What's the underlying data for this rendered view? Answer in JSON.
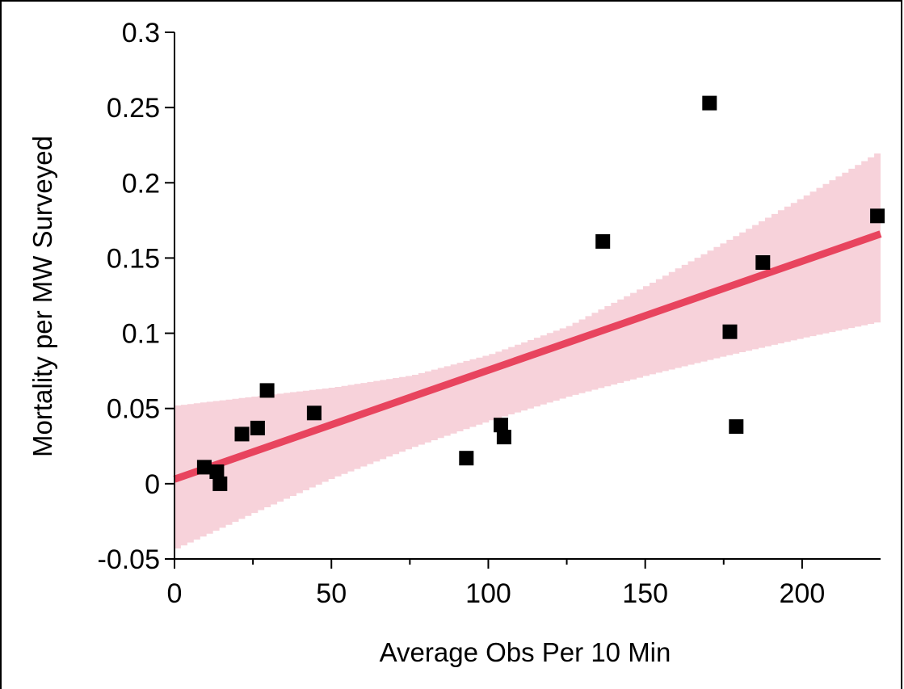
{
  "chart_data": {
    "type": "scatter",
    "title": "",
    "xlabel": "Average Obs Per 10 Min",
    "ylabel": "Mortality per MW Surveyed",
    "xlim": [
      0,
      225
    ],
    "ylim": [
      -0.05,
      0.3
    ],
    "x_ticks": [
      0,
      50,
      100,
      150,
      200
    ],
    "x_tick_labels": [
      "0",
      "50",
      "100",
      "150",
      "200"
    ],
    "x_minor_step": 25,
    "y_ticks": [
      -0.05,
      0,
      0.05,
      0.1,
      0.15,
      0.2,
      0.25,
      0.3
    ],
    "y_tick_labels": [
      "-0.05",
      "0",
      "0.05",
      "0.1",
      "0.15",
      "0.2",
      "0.25",
      "0.3"
    ],
    "grid": false,
    "legend": "none",
    "series": [
      {
        "points": [
          [
            9.5,
            0.011
          ],
          [
            13.5,
            0.008
          ],
          [
            14.5,
            0.0
          ],
          [
            21.5,
            0.033
          ],
          [
            26.5,
            0.037
          ],
          [
            29.5,
            0.062
          ],
          [
            44.5,
            0.047
          ],
          [
            93,
            0.017
          ],
          [
            104,
            0.039
          ],
          [
            105,
            0.031
          ],
          [
            136.5,
            0.161
          ],
          [
            170.5,
            0.253
          ],
          [
            177,
            0.101
          ],
          [
            179,
            0.038
          ],
          [
            187.5,
            0.147
          ],
          [
            224,
            0.178
          ]
        ],
        "marker": "square",
        "color": "#000000"
      }
    ],
    "fit_line": {
      "x": [
        0,
        225
      ],
      "y": [
        0.003,
        0.166
      ],
      "color": "#e8445e"
    },
    "confidence_band": {
      "x": [
        0,
        25,
        50,
        75,
        100,
        125,
        150,
        175,
        200,
        225
      ],
      "lower": [
        -0.043,
        -0.019,
        0.004,
        0.024,
        0.042,
        0.058,
        0.072,
        0.085,
        0.097,
        0.108
      ],
      "upper": [
        0.052,
        0.058,
        0.064,
        0.072,
        0.086,
        0.105,
        0.132,
        0.161,
        0.191,
        0.222
      ],
      "color": "#f7d2da"
    }
  }
}
